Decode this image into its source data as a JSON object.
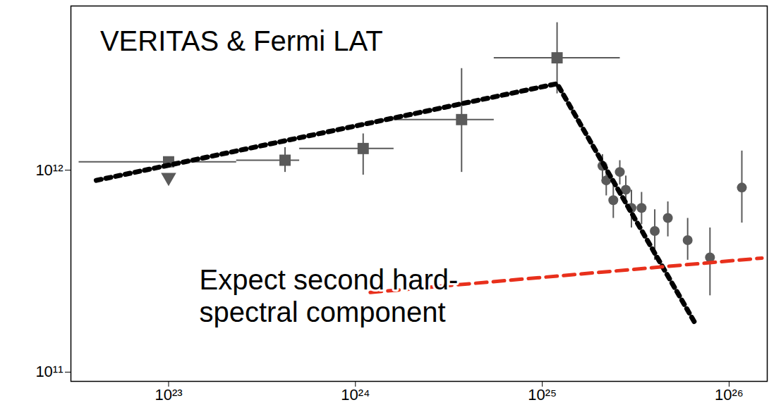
{
  "chart_data": {
    "type": "scatter",
    "log": true,
    "xlim": [
      3e+22,
      1.6e+26
    ],
    "ylim": [
      90000000000.0,
      6500000000000.0
    ],
    "xticks": [
      {
        "value": 1e+23,
        "label": "10²³"
      },
      {
        "value": 1e+24,
        "label": "10²⁴"
      },
      {
        "value": 1e+25,
        "label": "10²⁵"
      },
      {
        "value": 1e+26,
        "label": "10²⁶"
      }
    ],
    "yticks": [
      {
        "value": 100000000000.0,
        "label": "10¹¹"
      },
      {
        "value": 1000000000000.0,
        "label": "10¹²"
      }
    ],
    "series": [
      {
        "type": "scatter",
        "marker": "square",
        "color": "#5a5a5a",
        "x": [
          1e+23,
          4.2e+23,
          1.1e+24,
          3.7e+24,
          1.2e+25
        ],
        "values": [
          1100000000000.0,
          1120000000000.0,
          1280000000000.0,
          1780000000000.0,
          3600000000000.0
        ],
        "x_low": [
          3.3e+22,
          2.3e+23,
          5e+23,
          1.6e+24,
          5.5e+24
        ],
        "x_high": [
          2.3e+23,
          5e+23,
          1.6e+24,
          5.5e+24,
          2.6e+25
        ],
        "y_low": [
          null,
          980000000000.0,
          950000000000.0,
          980000000000.0,
          2400000000000.0
        ],
        "y_high": [
          null,
          1300000000000.0,
          1520000000000.0,
          3200000000000.0,
          5400000000000.0
        ],
        "upper_limits": [
          true,
          false,
          false,
          false,
          false
        ]
      },
      {
        "type": "scatter",
        "marker": "circle",
        "color": "#5a5a5a",
        "x": [
          2.1e+25,
          2.2e+25,
          2.6e+25,
          2.4e+25,
          2.8e+25,
          3e+25,
          3.4e+25,
          4e+25,
          4.7e+25,
          6e+25,
          7.9e+25,
          1.17e+26
        ],
        "values": [
          1050000000000.0,
          890000000000.0,
          980000000000.0,
          710000000000.0,
          800000000000.0,
          650000000000.0,
          650000000000.0,
          500000000000.0,
          580000000000.0,
          450000000000.0,
          370000000000.0,
          820000000000.0
        ],
        "y_low": [
          900000000000.0,
          750000000000.0,
          850000000000.0,
          580000000000.0,
          680000000000.0,
          520000000000.0,
          540000000000.0,
          360000000000.0,
          470000000000.0,
          360000000000.0,
          240000000000.0,
          550000000000.0
        ],
        "y_high": [
          1200000000000.0,
          1050000000000.0,
          1120000000000.0,
          850000000000.0,
          940000000000.0,
          800000000000.0,
          780000000000.0,
          640000000000.0,
          700000000000.0,
          580000000000.0,
          520000000000.0,
          1250000000000.0
        ]
      },
      {
        "type": "line",
        "line_style": "dotted",
        "color": "#000000",
        "x": [
          4.1e+22,
          1.2e+25,
          6.5e+25
        ],
        "values": [
          890000000000.0,
          2680000000000.0,
          178000000000.0
        ]
      },
      {
        "type": "line",
        "line_style": "dashed",
        "color": "#e8301c",
        "x": [
          1.2e+24,
          1.5e+26
        ],
        "values": [
          248000000000.0,
          367000000000.0
        ]
      }
    ],
    "annotations": [
      {
        "text": "VERITAS & Fermi LAT",
        "x": 4.3e+22,
        "y": 4400000000000.0
      },
      {
        "text": "Expect second hard-spectral component",
        "x": 1.46e+23,
        "y": 240000000000.0
      }
    ]
  }
}
